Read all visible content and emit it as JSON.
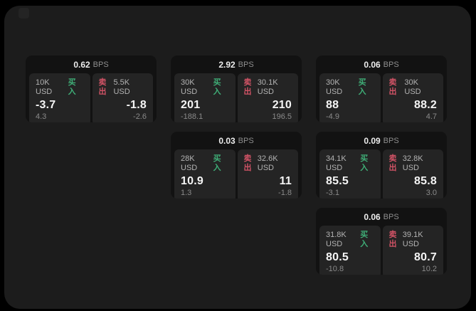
{
  "labels": {
    "bps_unit": "BPS",
    "buy": "买入",
    "sell": "卖出"
  },
  "colors": {
    "buy": "#3fae77",
    "sell": "#d25366",
    "surface": "#1c1c1c",
    "card": "#121212",
    "panel": "#242424"
  },
  "cards": [
    {
      "bps": "0.62",
      "row": 1,
      "col": 1,
      "buy": {
        "size": "10K USD",
        "value": "-3.7",
        "sub": "4.3"
      },
      "sell": {
        "size": "5.5K USD",
        "value": "-1.8",
        "sub": "-2.6"
      }
    },
    {
      "bps": "2.92",
      "row": 1,
      "col": 2,
      "buy": {
        "size": "30K USD",
        "value": "201",
        "sub": "-188.1"
      },
      "sell": {
        "size": "30.1K USD",
        "value": "210",
        "sub": "196.5"
      }
    },
    {
      "bps": "0.06",
      "row": 1,
      "col": 3,
      "buy": {
        "size": "30K USD",
        "value": "88",
        "sub": "-4.9"
      },
      "sell": {
        "size": "30K USD",
        "value": "88.2",
        "sub": "4.7"
      }
    },
    {
      "bps": "0.03",
      "row": 2,
      "col": 2,
      "buy": {
        "size": "28K USD",
        "value": "10.9",
        "sub": "1.3"
      },
      "sell": {
        "size": "32.6K USD",
        "value": "11",
        "sub": "-1.8"
      }
    },
    {
      "bps": "0.09",
      "row": 2,
      "col": 3,
      "buy": {
        "size": "34.1K USD",
        "value": "85.5",
        "sub": "-3.1"
      },
      "sell": {
        "size": "32.8K USD",
        "value": "85.8",
        "sub": "3.0"
      }
    },
    {
      "bps": "0.06",
      "row": 3,
      "col": 3,
      "buy": {
        "size": "31.8K USD",
        "value": "80.5",
        "sub": "-10.8"
      },
      "sell": {
        "size": "39.1K USD",
        "value": "80.7",
        "sub": "10.2"
      }
    }
  ]
}
